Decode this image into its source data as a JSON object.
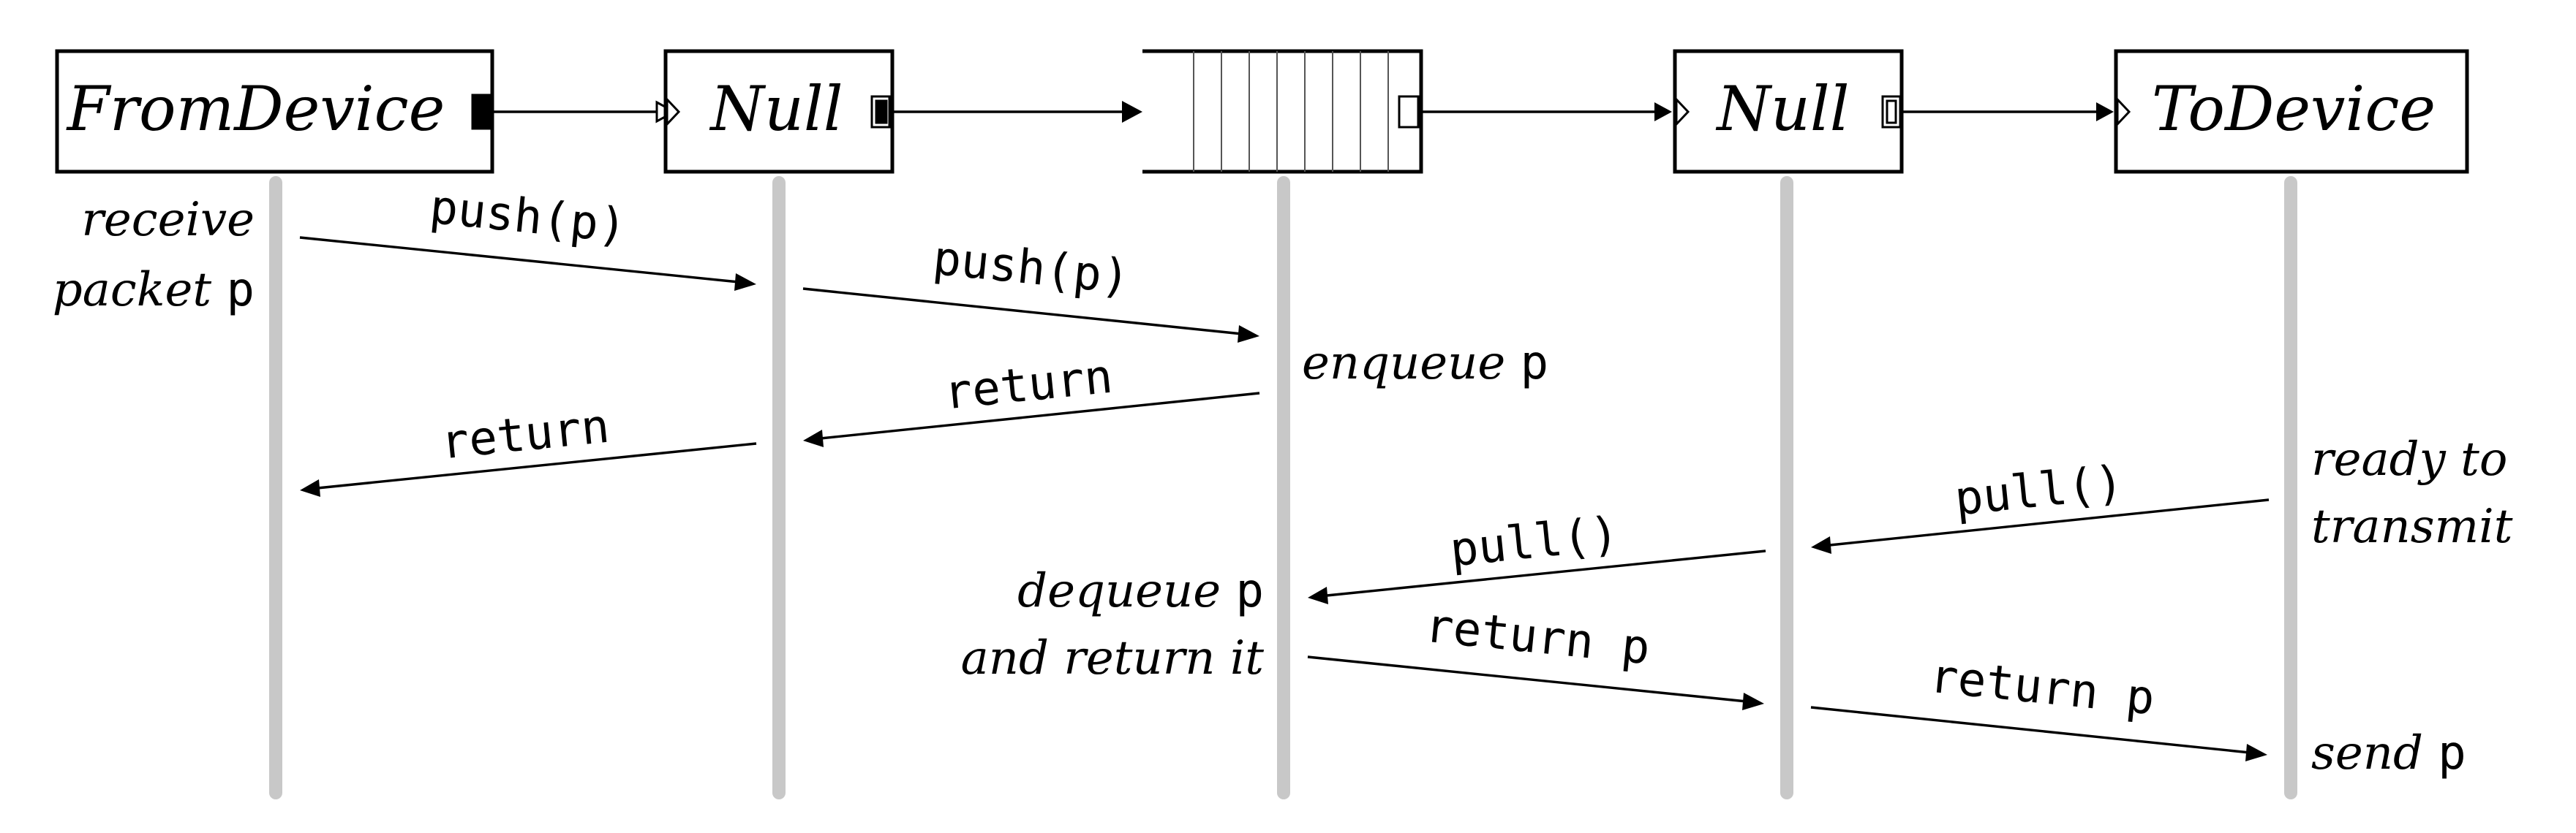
{
  "elements": [
    {
      "id": "fromdevice",
      "label": "FromDevice"
    },
    {
      "id": "null1",
      "label": "Null"
    },
    {
      "id": "queue",
      "label": ""
    },
    {
      "id": "null2",
      "label": "Null"
    },
    {
      "id": "todevice",
      "label": "ToDevice"
    }
  ],
  "messages": [
    {
      "id": "m1",
      "label": "push(p)"
    },
    {
      "id": "m2",
      "label": "push(p)"
    },
    {
      "id": "m3",
      "label": "return"
    },
    {
      "id": "m4",
      "label": "return"
    },
    {
      "id": "m5",
      "label": "pull()"
    },
    {
      "id": "m6",
      "label": "pull()"
    },
    {
      "id": "m7",
      "label": "return p"
    },
    {
      "id": "m8",
      "label": "return p"
    }
  ],
  "notes": {
    "receive": {
      "line1": "receive",
      "line2_text": "packet",
      "line2_code": "p"
    },
    "enqueue": {
      "text": "enqueue",
      "code": "p"
    },
    "ready": {
      "line1": "ready to",
      "line2": "transmit"
    },
    "dequeue": {
      "line1_text": "dequeue",
      "line1_code": "p",
      "line2": "and return it"
    },
    "send": {
      "text": "send",
      "code": "p"
    }
  }
}
